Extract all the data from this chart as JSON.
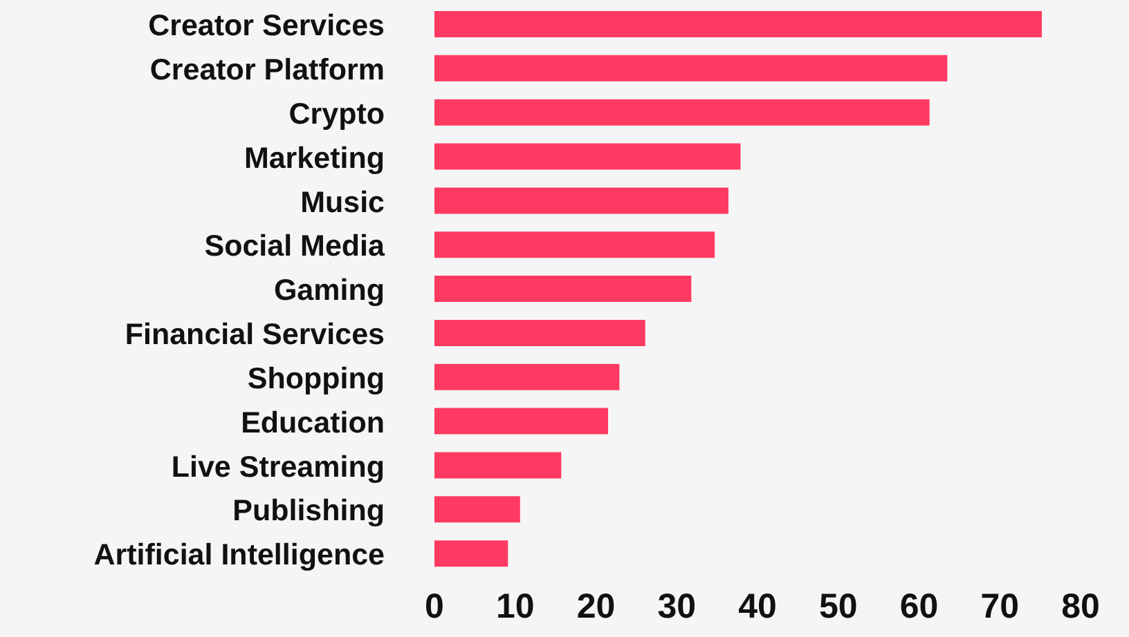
{
  "chart_data": {
    "type": "bar",
    "orientation": "horizontal",
    "categories": [
      "Creator Services",
      "Creator Platform",
      "Crypto",
      "Marketing",
      "Music",
      "Social Media",
      "Gaming",
      "Financial Services",
      "Shopping",
      "Education",
      "Live Streaming",
      "Publishing",
      "Artificial Intelligence"
    ],
    "values": [
      75.2,
      63.5,
      61.3,
      37.9,
      36.4,
      34.7,
      31.8,
      26.1,
      22.9,
      21.5,
      15.7,
      10.6,
      9.1
    ],
    "color": "#ff3a62",
    "xlim": [
      0,
      80
    ],
    "xticks": [
      0,
      10,
      20,
      30,
      40,
      50,
      60,
      70,
      80
    ],
    "grid": false,
    "legend": false
  }
}
